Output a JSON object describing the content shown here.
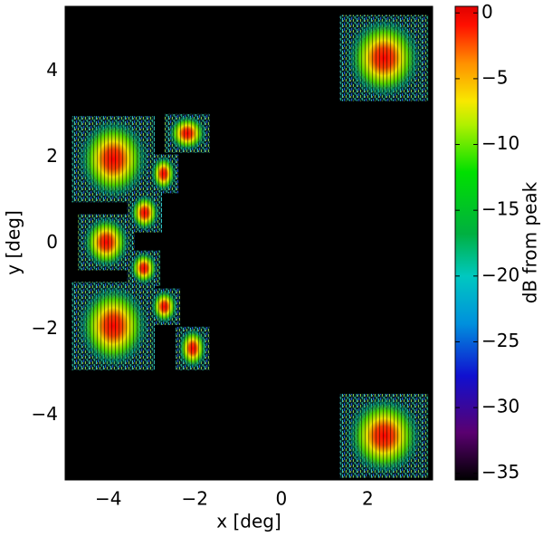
{
  "chart_data": {
    "type": "heatmap",
    "xlabel": "x [deg]",
    "ylabel": "y [deg]",
    "colorbar_label": "dB from peak",
    "xlim": [
      -5,
      3.5
    ],
    "ylim": [
      -5.5,
      5.5
    ],
    "xticks": [
      {
        "value": -4,
        "label": "−4"
      },
      {
        "value": -2,
        "label": "−2"
      },
      0,
      2
    ],
    "yticks": [
      {
        "value": -4,
        "label": "−4"
      },
      {
        "value": -2,
        "label": "−2"
      },
      0,
      2,
      4
    ],
    "clim": [
      -35.5,
      0.5
    ],
    "cticks": [
      0,
      {
        "value": -5,
        "label": "−5"
      },
      {
        "value": -10,
        "label": "−10"
      },
      {
        "value": -15,
        "label": "−15"
      },
      {
        "value": -20,
        "label": "−20"
      },
      {
        "value": -25,
        "label": "−25"
      },
      {
        "value": -30,
        "label": "−30"
      },
      {
        "value": -35,
        "label": "−35"
      }
    ],
    "beams": [
      {
        "x": [
          1.35,
          3.4
        ],
        "y": [
          3.3,
          5.3
        ]
      },
      {
        "x": [
          1.35,
          3.4
        ],
        "y": [
          -5.45,
          -3.5
        ]
      },
      {
        "x": [
          -4.85,
          -2.93
        ],
        "y": [
          0.95,
          2.95
        ]
      },
      {
        "x": [
          -4.7,
          -3.4
        ],
        "y": [
          -0.63,
          0.67
        ]
      },
      {
        "x": [
          -4.85,
          -2.93
        ],
        "y": [
          -2.95,
          -0.9
        ]
      },
      {
        "x": [
          -2.7,
          -1.65
        ],
        "y": [
          2.1,
          3.0
        ]
      },
      {
        "x": [
          -3.07,
          -2.38
        ],
        "y": [
          1.16,
          2.06
        ]
      },
      {
        "x": [
          -3.56,
          -2.76
        ],
        "y": [
          0.25,
          1.16
        ]
      },
      {
        "x": [
          -3.56,
          -2.8
        ],
        "y": [
          -1.0,
          -0.17
        ]
      },
      {
        "x": [
          -3.07,
          -2.34
        ],
        "y": [
          -1.9,
          -1.05
        ]
      },
      {
        "x": [
          -2.44,
          -1.66
        ],
        "y": [
          -2.95,
          -1.94
        ]
      }
    ]
  }
}
